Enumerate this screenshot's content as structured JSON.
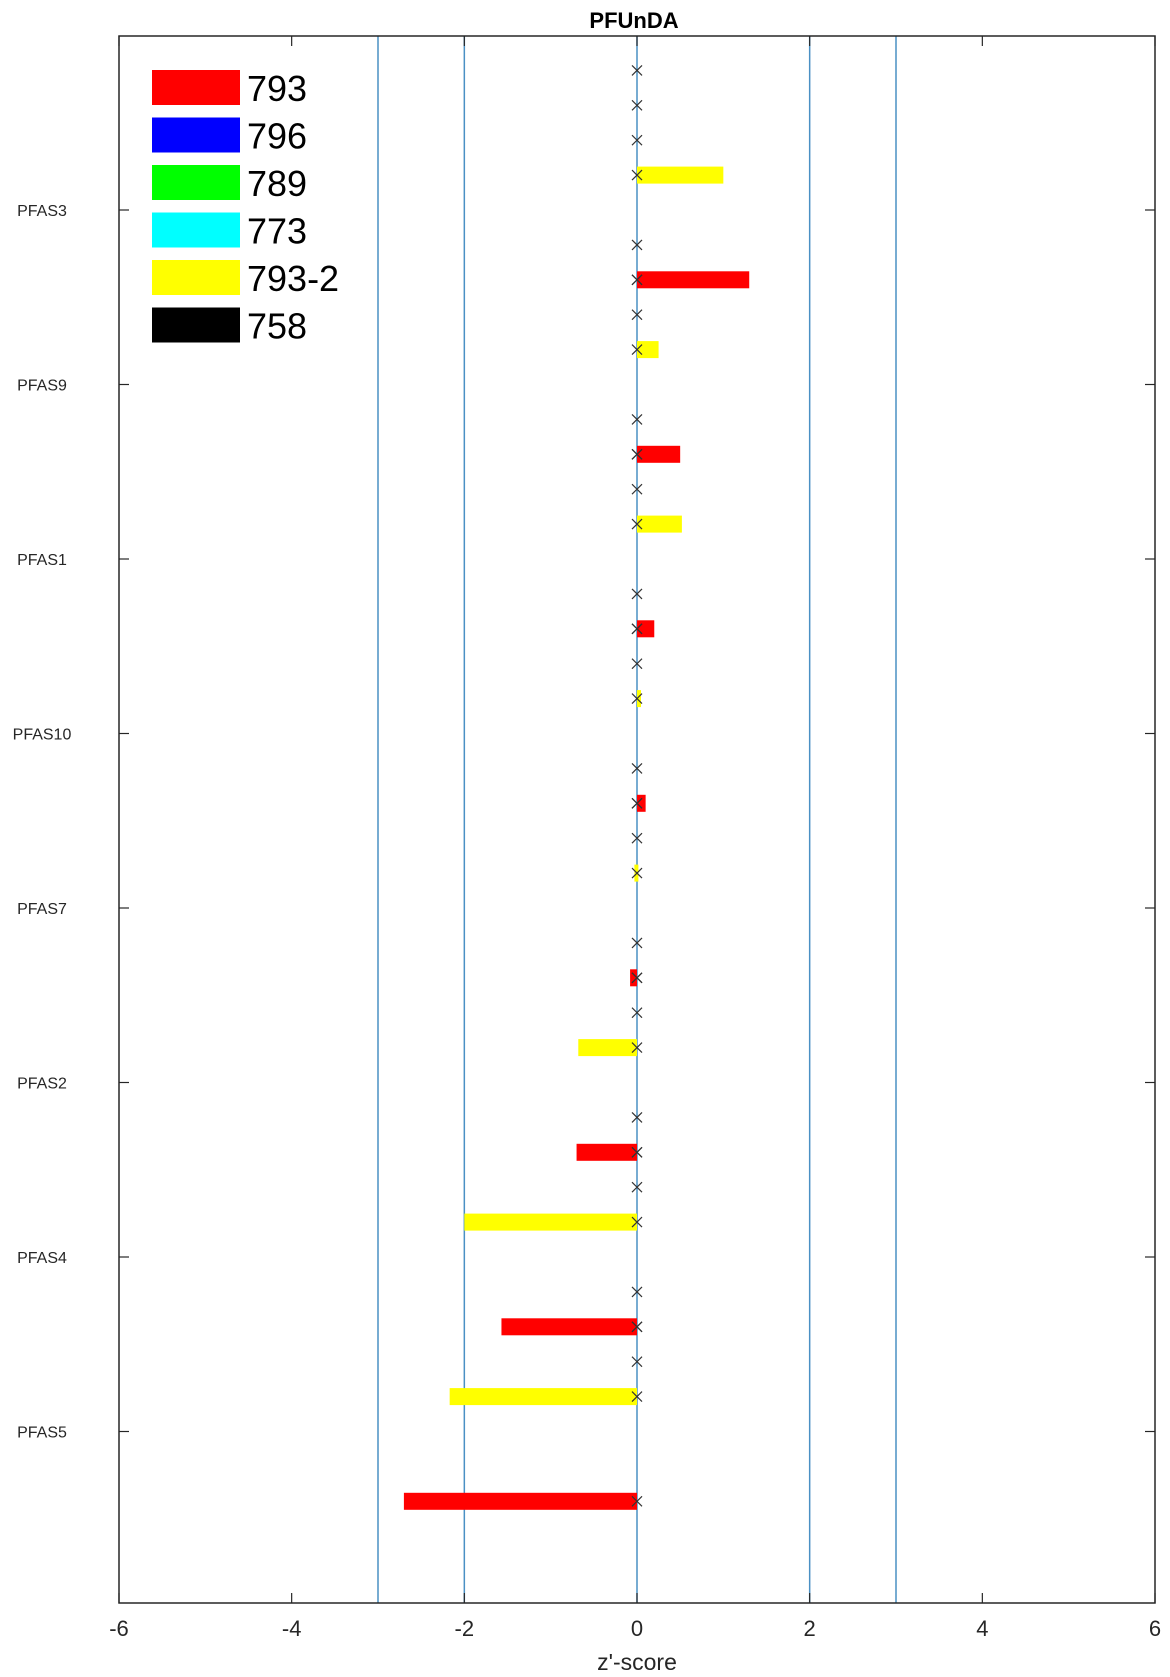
{
  "chart_data": {
    "type": "bar",
    "orientation": "horizontal",
    "title": "PFUnDA",
    "xlabel": "z'-score",
    "ylabel": "",
    "xlim": [
      -6,
      6
    ],
    "x_ticks": [
      -6,
      -4,
      -2,
      0,
      2,
      4,
      6
    ],
    "reference_lines": [
      -3,
      -2,
      2,
      3
    ],
    "legend_position": "top-left",
    "grid": false,
    "legend": [
      {
        "label": "793",
        "color": "#ff0000"
      },
      {
        "label": "796",
        "color": "#0000ff"
      },
      {
        "label": "789",
        "color": "#00ff00"
      },
      {
        "label": "773",
        "color": "#00ffff"
      },
      {
        "label": "793-2",
        "color": "#ffff00"
      },
      {
        "label": "758",
        "color": "#000000"
      }
    ],
    "categories": [
      "PFAS3",
      "PFAS9",
      "PFAS1",
      "PFAS10",
      "PFAS7",
      "PFAS2",
      "PFAS4",
      "PFAS5"
    ],
    "series": [
      {
        "name": "793",
        "color": "#ff0000",
        "values": [
          1.3,
          0.5,
          0.2,
          0.1,
          -0.08,
          -0.7,
          -1.57,
          -2.7
        ]
      },
      {
        "name": "793-2",
        "color": "#ffff00",
        "values": [
          1.0,
          0.25,
          0.52,
          0.0,
          -0.03,
          -0.68,
          -2.0,
          -2.17
        ]
      }
    ],
    "zero_marker_series_count": 6
  }
}
